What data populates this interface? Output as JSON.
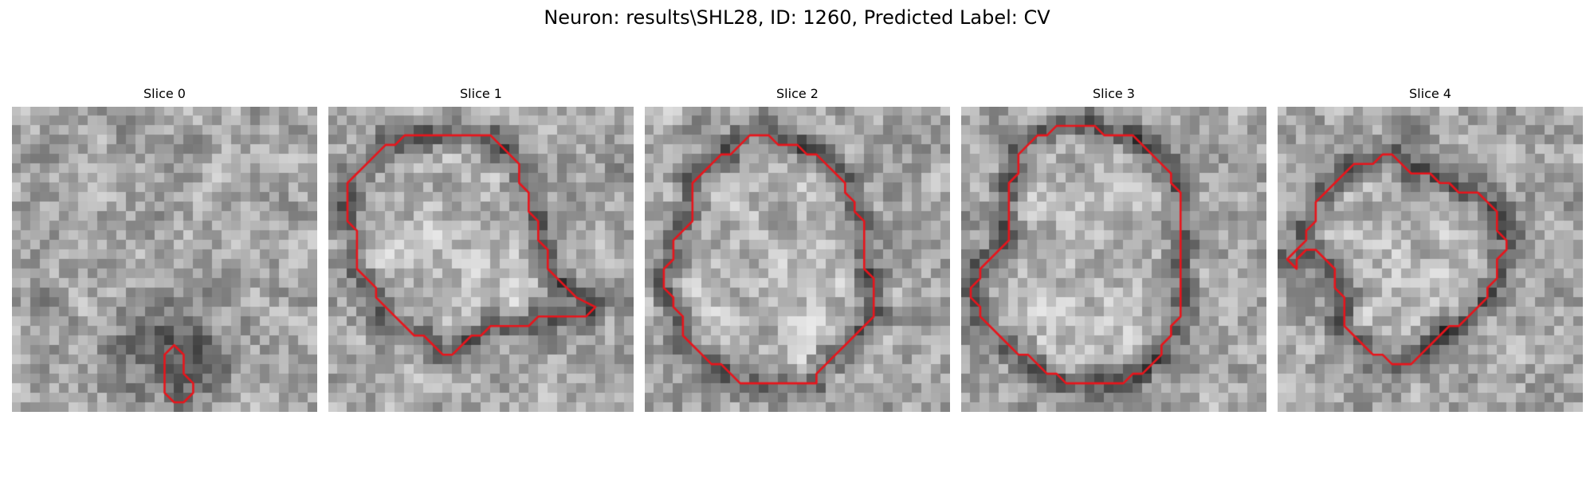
{
  "figure": {
    "suptitle": "Neuron: results\\SHL28, ID: 1260, Predicted Label: CV"
  },
  "panels": [
    {
      "title": "Slice 0",
      "contour_color": "#e8141b",
      "contour": [
        [
          17,
          25
        ],
        [
          18,
          26
        ],
        [
          18,
          28
        ],
        [
          19,
          29
        ],
        [
          19,
          30
        ],
        [
          18,
          31
        ],
        [
          17,
          31
        ],
        [
          16,
          30
        ],
        [
          16,
          28
        ],
        [
          16,
          26
        ]
      ]
    },
    {
      "title": "Slice 1",
      "contour_color": "#e8141b",
      "contour": [
        [
          11,
          3
        ],
        [
          17,
          3
        ],
        [
          18,
          4
        ],
        [
          19,
          5
        ],
        [
          20,
          6
        ],
        [
          20,
          8
        ],
        [
          21,
          9
        ],
        [
          21,
          11
        ],
        [
          22,
          12
        ],
        [
          22,
          14
        ],
        [
          23,
          15
        ],
        [
          23,
          17
        ],
        [
          24,
          18
        ],
        [
          25,
          19
        ],
        [
          26,
          20
        ],
        [
          28,
          21
        ],
        [
          27,
          22
        ],
        [
          22,
          22
        ],
        [
          21,
          23
        ],
        [
          17,
          23
        ],
        [
          16,
          24
        ],
        [
          15,
          24
        ],
        [
          14,
          25
        ],
        [
          13,
          26
        ],
        [
          12,
          26
        ],
        [
          11,
          25
        ],
        [
          10,
          24
        ],
        [
          9,
          24
        ],
        [
          8,
          23
        ],
        [
          7,
          22
        ],
        [
          6,
          21
        ],
        [
          5,
          20
        ],
        [
          5,
          19
        ],
        [
          4,
          18
        ],
        [
          3,
          17
        ],
        [
          3,
          13
        ],
        [
          2,
          12
        ],
        [
          2,
          8
        ],
        [
          3,
          7
        ],
        [
          4,
          6
        ],
        [
          5,
          5
        ],
        [
          6,
          4
        ],
        [
          7,
          4
        ],
        [
          8,
          3
        ]
      ]
    },
    {
      "title": "Slice 2",
      "contour_color": "#e8141b",
      "contour": [
        [
          11,
          3
        ],
        [
          13,
          3
        ],
        [
          14,
          4
        ],
        [
          16,
          4
        ],
        [
          17,
          5
        ],
        [
          18,
          5
        ],
        [
          19,
          6
        ],
        [
          20,
          7
        ],
        [
          21,
          8
        ],
        [
          21,
          9
        ],
        [
          22,
          10
        ],
        [
          22,
          11
        ],
        [
          23,
          12
        ],
        [
          23,
          17
        ],
        [
          24,
          18
        ],
        [
          24,
          22
        ],
        [
          23,
          23
        ],
        [
          22,
          24
        ],
        [
          21,
          25
        ],
        [
          20,
          26
        ],
        [
          19,
          27
        ],
        [
          18,
          28
        ],
        [
          18,
          29
        ],
        [
          10,
          29
        ],
        [
          9,
          28
        ],
        [
          8,
          27
        ],
        [
          7,
          27
        ],
        [
          6,
          26
        ],
        [
          5,
          25
        ],
        [
          4,
          24
        ],
        [
          4,
          22
        ],
        [
          3,
          21
        ],
        [
          3,
          20
        ],
        [
          2,
          19
        ],
        [
          2,
          17
        ],
        [
          3,
          16
        ],
        [
          3,
          14
        ],
        [
          4,
          13
        ],
        [
          5,
          12
        ],
        [
          5,
          8
        ],
        [
          6,
          7
        ],
        [
          7,
          6
        ],
        [
          8,
          5
        ],
        [
          9,
          5
        ],
        [
          10,
          4
        ]
      ]
    },
    {
      "title": "Slice 3",
      "contour_color": "#e8141b",
      "contour": [
        [
          11,
          2
        ],
        [
          14,
          2
        ],
        [
          15,
          3
        ],
        [
          18,
          3
        ],
        [
          19,
          4
        ],
        [
          20,
          5
        ],
        [
          21,
          6
        ],
        [
          22,
          7
        ],
        [
          22,
          8
        ],
        [
          23,
          9
        ],
        [
          23,
          22
        ],
        [
          22,
          23
        ],
        [
          22,
          24
        ],
        [
          21,
          25
        ],
        [
          21,
          26
        ],
        [
          20,
          27
        ],
        [
          19,
          28
        ],
        [
          18,
          28
        ],
        [
          17,
          29
        ],
        [
          11,
          29
        ],
        [
          10,
          28
        ],
        [
          9,
          28
        ],
        [
          8,
          27
        ],
        [
          7,
          26
        ],
        [
          6,
          26
        ],
        [
          5,
          25
        ],
        [
          4,
          24
        ],
        [
          3,
          23
        ],
        [
          2,
          22
        ],
        [
          2,
          21
        ],
        [
          1,
          20
        ],
        [
          1,
          19
        ],
        [
          2,
          18
        ],
        [
          2,
          17
        ],
        [
          3,
          16
        ],
        [
          4,
          15
        ],
        [
          5,
          14
        ],
        [
          5,
          8
        ],
        [
          6,
          7
        ],
        [
          6,
          5
        ],
        [
          7,
          4
        ],
        [
          8,
          3
        ],
        [
          9,
          3
        ],
        [
          10,
          2
        ]
      ]
    },
    {
      "title": "Slice 4",
      "contour_color": "#e8141b",
      "contour": [
        [
          11,
          5
        ],
        [
          12,
          5
        ],
        [
          13,
          6
        ],
        [
          14,
          7
        ],
        [
          16,
          7
        ],
        [
          17,
          8
        ],
        [
          18,
          8
        ],
        [
          19,
          9
        ],
        [
          21,
          9
        ],
        [
          22,
          10
        ],
        [
          23,
          11
        ],
        [
          23,
          13
        ],
        [
          24,
          14
        ],
        [
          24,
          15
        ],
        [
          23,
          16
        ],
        [
          23,
          18
        ],
        [
          22,
          19
        ],
        [
          22,
          20
        ],
        [
          21,
          21
        ],
        [
          20,
          22
        ],
        [
          19,
          23
        ],
        [
          18,
          23
        ],
        [
          17,
          24
        ],
        [
          16,
          25
        ],
        [
          15,
          26
        ],
        [
          14,
          27
        ],
        [
          12,
          27
        ],
        [
          11,
          26
        ],
        [
          10,
          26
        ],
        [
          9,
          25
        ],
        [
          8,
          24
        ],
        [
          7,
          23
        ],
        [
          7,
          20
        ],
        [
          6,
          19
        ],
        [
          6,
          17
        ],
        [
          5,
          16
        ],
        [
          5,
          16
        ],
        [
          4,
          15
        ],
        [
          3,
          15
        ],
        [
          2,
          16
        ],
        [
          2,
          17
        ],
        [
          1,
          16
        ],
        [
          2,
          15
        ],
        [
          3,
          14
        ],
        [
          3,
          13
        ],
        [
          4,
          12
        ],
        [
          4,
          10
        ],
        [
          5,
          9
        ],
        [
          6,
          8
        ],
        [
          7,
          7
        ],
        [
          8,
          6
        ],
        [
          10,
          6
        ]
      ]
    }
  ]
}
